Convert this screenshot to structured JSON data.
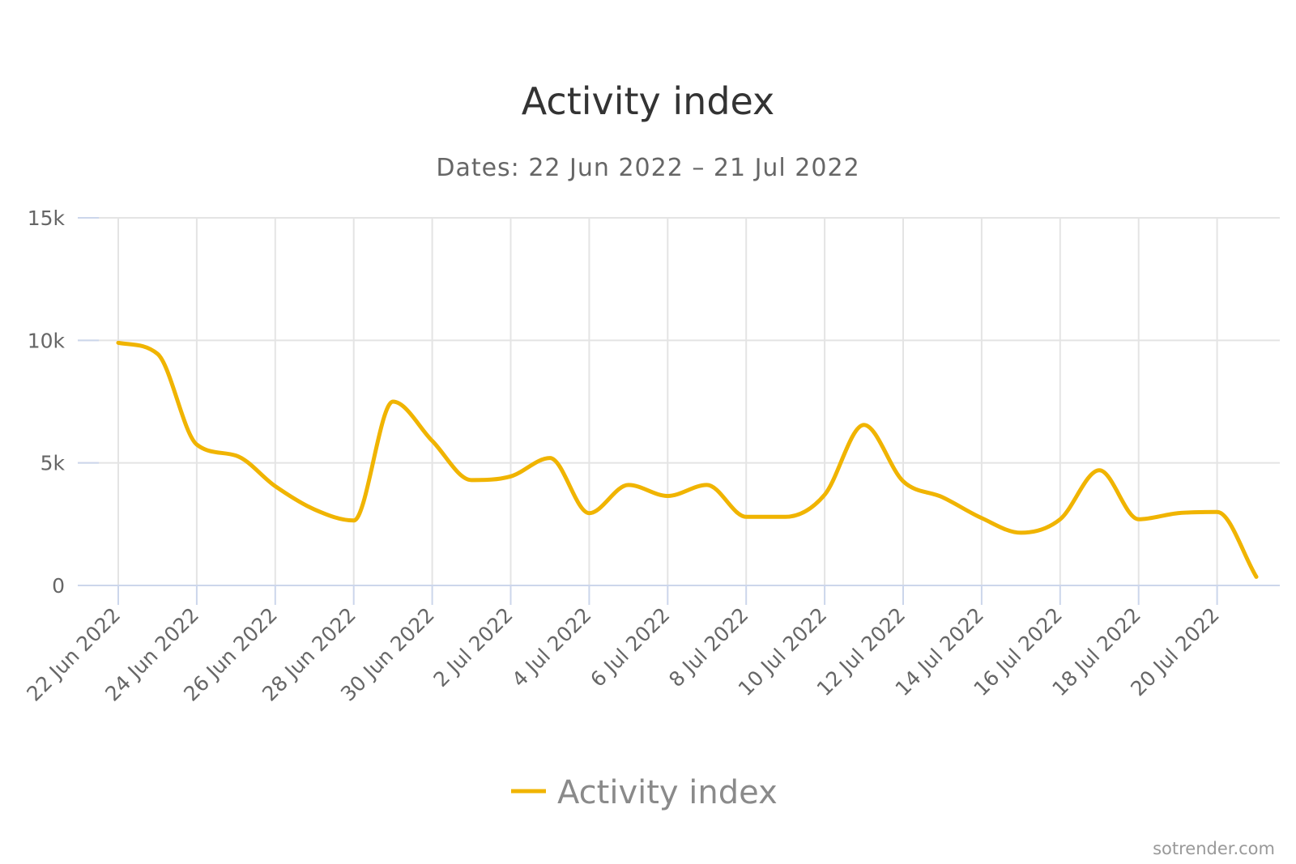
{
  "colors": {
    "series": "#f0b400",
    "grid": "#e4e4e4",
    "axis": "#ccd6eb",
    "title": "#333333",
    "subtitle": "#666666"
  },
  "chart_data": {
    "type": "line",
    "title": "Activity index",
    "subtitle": "Dates: 22 Jun 2022 – 21 Jul 2022",
    "ylim": [
      0,
      15000
    ],
    "yticks": [
      0,
      5000,
      10000,
      15000
    ],
    "ytick_labels": [
      "0",
      "5k",
      "10k",
      "15k"
    ],
    "xtick_labels": [
      "22 Jun 2022",
      "24 Jun 2022",
      "26 Jun 2022",
      "28 Jun 2022",
      "30 Jun 2022",
      "2 Jul 2022",
      "4 Jul 2022",
      "6 Jul 2022",
      "8 Jul 2022",
      "10 Jul 2022",
      "12 Jul 2022",
      "14 Jul 2022",
      "16 Jul 2022",
      "18 Jul 2022",
      "20 Jul 2022"
    ],
    "grid": true,
    "legend": "bottom-center",
    "series": [
      {
        "name": "Activity index",
        "x": [
          "22 Jun 2022",
          "23 Jun 2022",
          "24 Jun 2022",
          "25 Jun 2022",
          "26 Jun 2022",
          "27 Jun 2022",
          "28 Jun 2022",
          "29 Jun 2022",
          "30 Jun 2022",
          "1 Jul 2022",
          "2 Jul 2022",
          "3 Jul 2022",
          "4 Jul 2022",
          "5 Jul 2022",
          "6 Jul 2022",
          "7 Jul 2022",
          "8 Jul 2022",
          "9 Jul 2022",
          "10 Jul 2022",
          "11 Jul 2022",
          "12 Jul 2022",
          "13 Jul 2022",
          "14 Jul 2022",
          "15 Jul 2022",
          "16 Jul 2022",
          "17 Jul 2022",
          "18 Jul 2022",
          "19 Jul 2022",
          "20 Jul 2022",
          "21 Jul 2022"
        ],
        "values": [
          9900,
          9450,
          5750,
          5300,
          4050,
          3100,
          2650,
          7500,
          5900,
          4300,
          4450,
          5200,
          2950,
          4100,
          3650,
          4100,
          2800,
          2800,
          3700,
          6550,
          4250,
          3600,
          2750,
          2150,
          2700,
          4700,
          2700,
          2950,
          3000,
          350
        ]
      }
    ]
  },
  "footer": {
    "credit": "sotrender.com"
  }
}
